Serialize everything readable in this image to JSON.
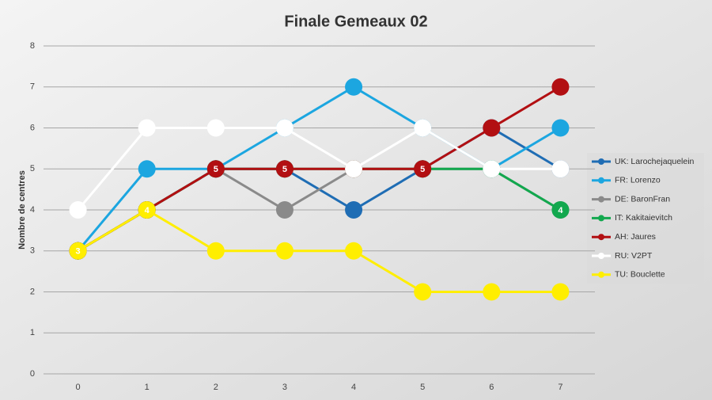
{
  "chart_data": {
    "type": "line",
    "title": "Finale Gemeaux 02",
    "y_label": "Nombre de centres",
    "x": [
      0,
      1,
      2,
      3,
      4,
      5,
      6,
      7
    ],
    "xlim": [
      -0.5,
      7.5
    ],
    "xticks": [
      0,
      1,
      2,
      3,
      4,
      5,
      6,
      7
    ],
    "ylim": [
      0,
      8
    ],
    "yticks": [
      0,
      1,
      2,
      3,
      4,
      5,
      6,
      7,
      8
    ],
    "grid": true,
    "legend": "right",
    "series": [
      {
        "name": "UK: Larochejaquelein",
        "color": "#1f6db4",
        "values": [
          3,
          4,
          5,
          5,
          4,
          5,
          6,
          5
        ],
        "show_value_labels": [
          false,
          false,
          false,
          false,
          false,
          false,
          false,
          false
        ]
      },
      {
        "name": "FR: Lorenzo",
        "color": "#1ca6e0",
        "values": [
          3,
          5,
          5,
          6,
          7,
          6,
          5,
          6
        ],
        "show_value_labels": [
          false,
          false,
          false,
          false,
          false,
          false,
          false,
          false
        ]
      },
      {
        "name": "DE: BaronFran",
        "color": "#8a8a8a",
        "values": [
          3,
          4,
          5,
          4,
          5,
          5,
          5,
          4
        ],
        "show_value_labels": [
          false,
          false,
          false,
          false,
          false,
          false,
          false,
          false
        ]
      },
      {
        "name": "IT: Kakitaievitch",
        "color": "#12a84e",
        "values": [
          3,
          4,
          5,
          5,
          5,
          5,
          5,
          4
        ],
        "show_value_labels": [
          false,
          false,
          false,
          false,
          false,
          false,
          false,
          true
        ]
      },
      {
        "name": "AH: Jaures",
        "color": "#b20f12",
        "values": [
          3,
          4,
          5,
          5,
          5,
          5,
          6,
          7
        ],
        "show_value_labels": [
          false,
          false,
          true,
          true,
          false,
          true,
          false,
          false
        ]
      },
      {
        "name": "RU: V2PT",
        "color": "#ffffff",
        "values": [
          4,
          6,
          6,
          6,
          5,
          6,
          5,
          5
        ],
        "show_value_labels": [
          false,
          false,
          false,
          false,
          false,
          false,
          false,
          false
        ]
      },
      {
        "name": "TU: Bouclette",
        "color": "#ffee00",
        "values": [
          3,
          4,
          3,
          3,
          3,
          2,
          2,
          2
        ],
        "show_value_labels": [
          true,
          true,
          false,
          false,
          false,
          false,
          false,
          false
        ]
      }
    ]
  }
}
